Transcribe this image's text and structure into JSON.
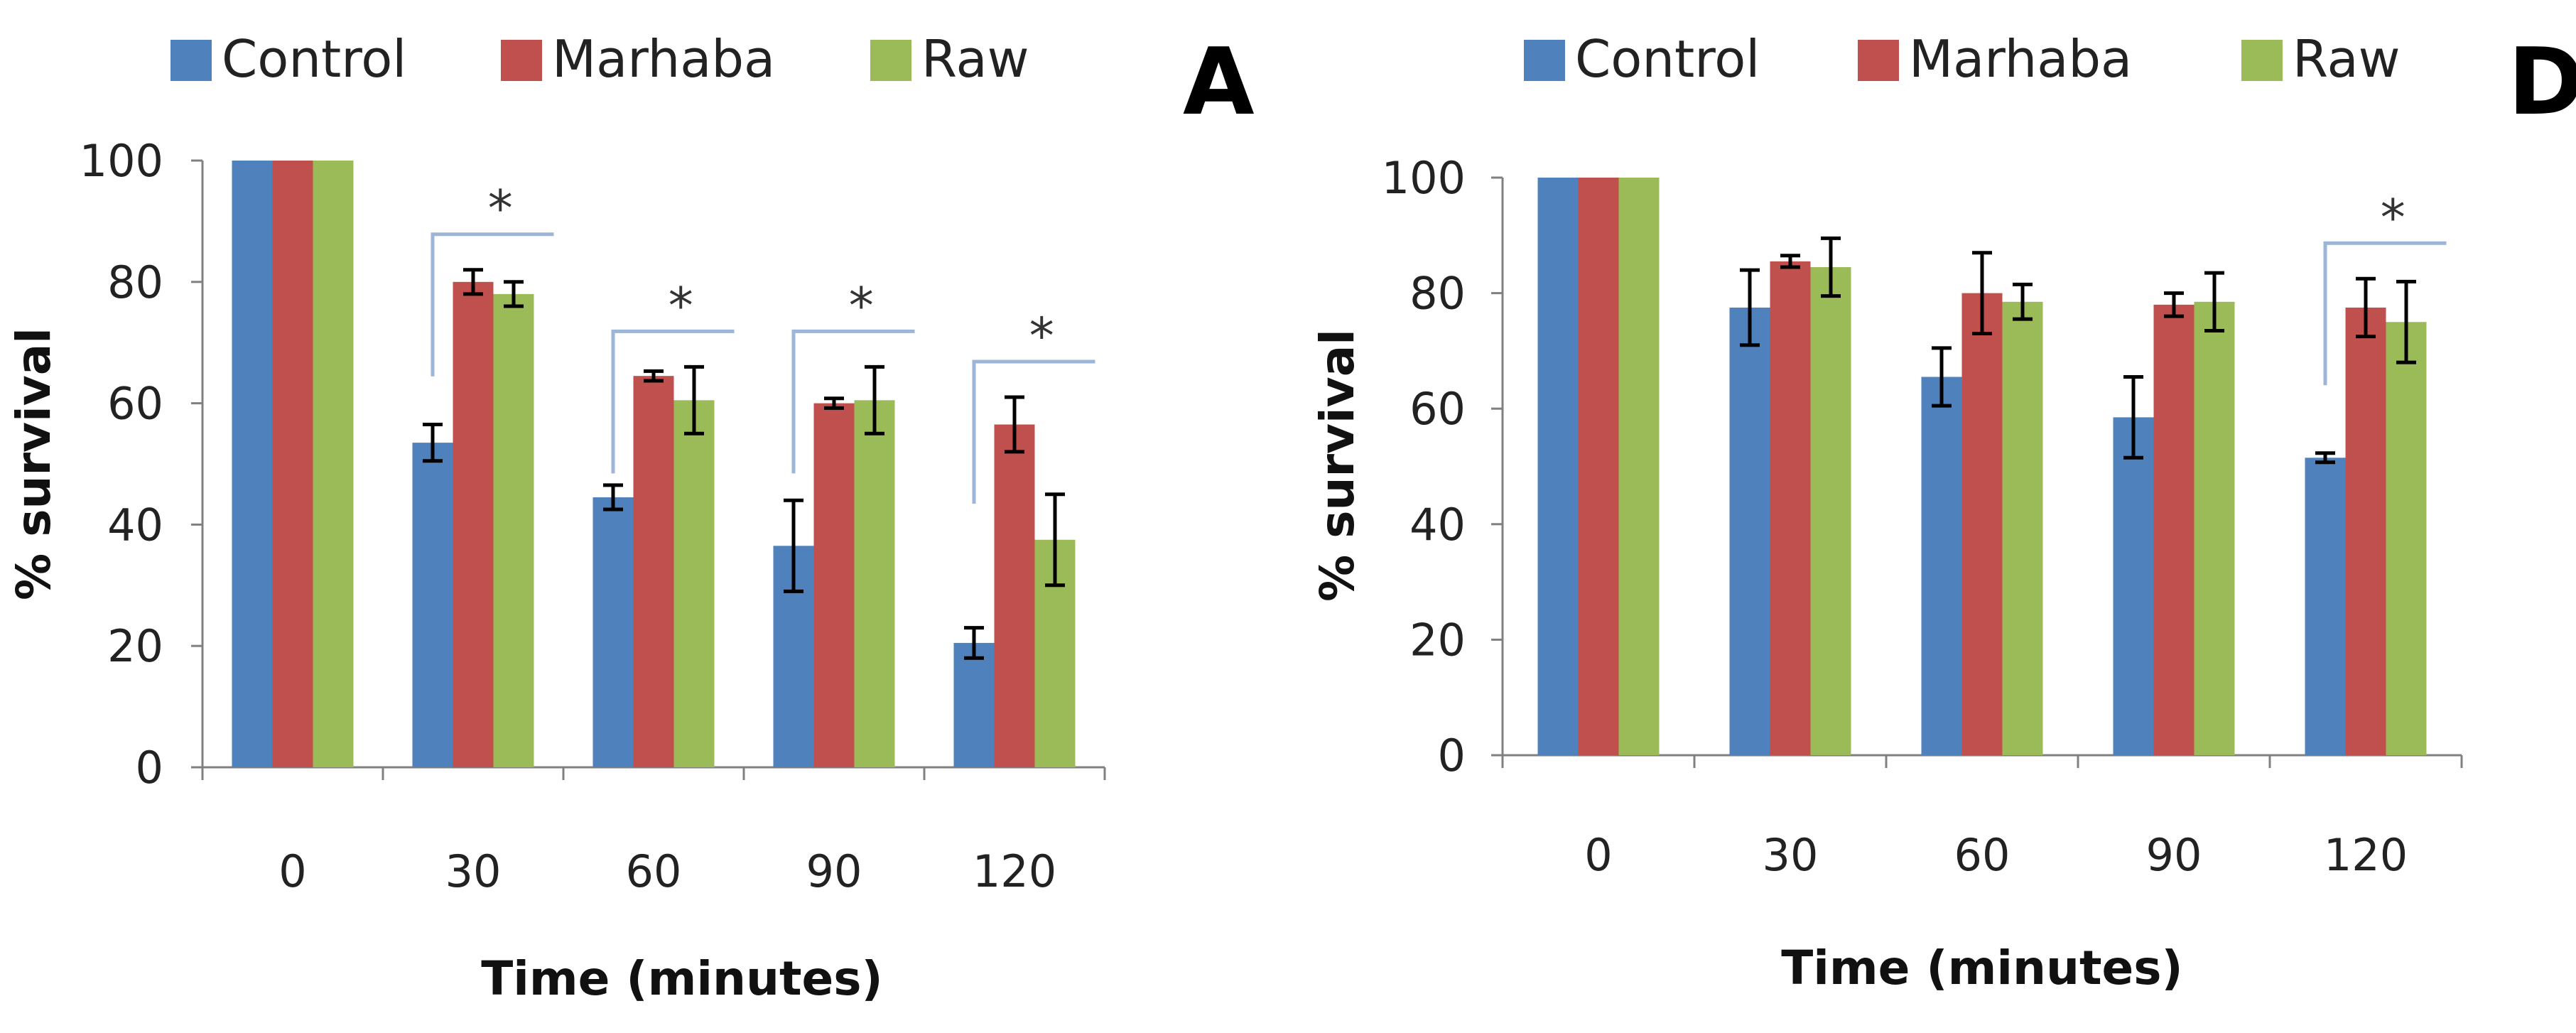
{
  "legend": [
    {
      "label": "Control",
      "color": "#4F81BD"
    },
    {
      "label": "Marhaba",
      "color": "#C0504D"
    },
    {
      "label": "Raw",
      "color": "#9BBB59"
    }
  ],
  "colors": {
    "bracket": "#9DB5D6",
    "axis": "#808080",
    "error": "#000000"
  },
  "chart_data": [
    {
      "type": "bar",
      "panel_label": "A",
      "title": "",
      "xlabel": "Time (minutes)",
      "ylabel": "% survival",
      "ylim": [
        0,
        100
      ],
      "yticks": [
        0,
        20,
        40,
        60,
        80,
        100
      ],
      "categories": [
        "0",
        "30",
        "60",
        "90",
        "120"
      ],
      "series": [
        {
          "name": "Control",
          "values": [
            100,
            53.5,
            44.5,
            36.5,
            20.5
          ],
          "errors": [
            0,
            3,
            2,
            7.5,
            2.5
          ]
        },
        {
          "name": "Marhaba",
          "values": [
            100,
            80,
            64.5,
            60,
            56.5
          ],
          "errors": [
            0,
            2,
            0.8,
            0.8,
            4.5
          ]
        },
        {
          "name": "Raw",
          "values": [
            100,
            78,
            60.5,
            60.5,
            37.5
          ],
          "errors": [
            0,
            2,
            5.5,
            5.5,
            7.5
          ]
        }
      ],
      "annotations": [
        {
          "category": "30",
          "text": "*"
        },
        {
          "category": "60",
          "text": "*"
        },
        {
          "category": "90",
          "text": "*"
        },
        {
          "category": "120",
          "text": "*"
        }
      ]
    },
    {
      "type": "bar",
      "panel_label": "D",
      "title": "",
      "xlabel": "Time (minutes)",
      "ylabel": "% survival",
      "ylim": [
        0,
        100
      ],
      "yticks": [
        0,
        20,
        40,
        60,
        80,
        100
      ],
      "categories": [
        "0",
        "30",
        "60",
        "90",
        "120"
      ],
      "series": [
        {
          "name": "Control",
          "values": [
            100,
            77.5,
            65.5,
            58.5,
            51.5
          ],
          "errors": [
            0,
            6.5,
            5,
            7,
            0.8
          ]
        },
        {
          "name": "Marhaba",
          "values": [
            100,
            85.5,
            80,
            78,
            77.5
          ],
          "errors": [
            0,
            1,
            7,
            2,
            5
          ]
        },
        {
          "name": "Raw",
          "values": [
            100,
            84.5,
            78.5,
            78.5,
            75
          ],
          "errors": [
            0,
            5,
            3,
            5,
            7
          ]
        }
      ],
      "annotations": [
        {
          "category": "120",
          "text": "*"
        }
      ]
    }
  ]
}
